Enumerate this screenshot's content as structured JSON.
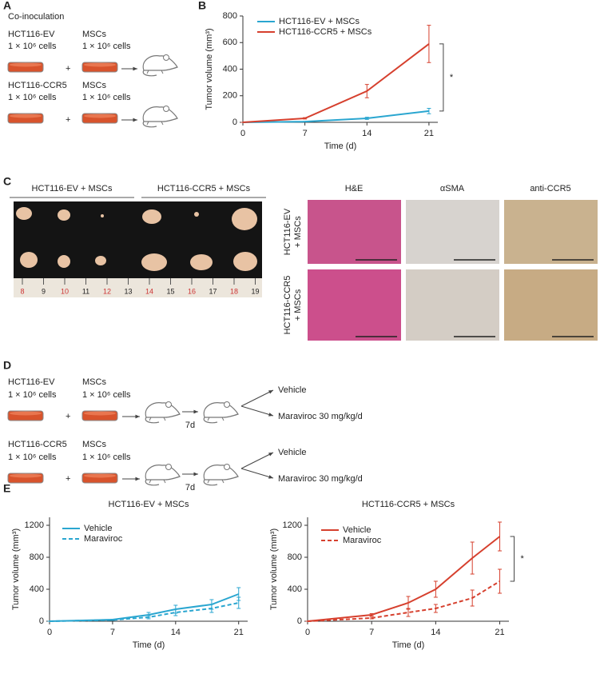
{
  "panel_labels": [
    "A",
    "B",
    "C",
    "D",
    "E"
  ],
  "panel_a": {
    "title": "Co-inoculation",
    "groups": [
      {
        "cells": "HCT116-EV",
        "cells_count": "1 × 10⁶ cells",
        "msc": "MSCs",
        "msc_count": "1 × 10⁶ cells",
        "plus": "+"
      },
      {
        "cells": "HCT116-CCR5",
        "cells_count": "1 × 10⁶ cells",
        "msc": "MSCs",
        "msc_count": "1 × 10⁶ cells",
        "plus": "+"
      }
    ]
  },
  "panel_c": {
    "photo_groups": [
      "HCT116-EV + MSCs",
      "HCT116-CCR5 + MSCs"
    ],
    "ruler": [
      "8",
      "9",
      "10",
      "11",
      "12",
      "13",
      "14",
      "15",
      "16",
      "17",
      "18",
      "19"
    ],
    "stain_columns": [
      "H&E",
      "αSMA",
      "anti-CCR5"
    ],
    "stain_rows": [
      [
        "HCT116-EV",
        "+ MSCs"
      ],
      [
        "HCT116-CCR5",
        "+ MSCs"
      ]
    ]
  },
  "panel_d": {
    "groups": [
      {
        "cells": "HCT116-EV",
        "cells_count": "1 × 10⁶ cells",
        "msc": "MSCs",
        "msc_count": "1 × 10⁶ cells",
        "plus": "+",
        "day": "7d",
        "treatments": [
          "Vehicle",
          "Maraviroc 30 mg/kg/d"
        ]
      },
      {
        "cells": "HCT116-CCR5",
        "cells_count": "1 × 10⁶ cells",
        "msc": "MSCs",
        "msc_count": "1 × 10⁶ cells",
        "plus": "+",
        "day": "7d",
        "treatments": [
          "Vehicle",
          "Maraviroc 30 mg/kg/d"
        ]
      }
    ]
  },
  "chart_data": [
    {
      "type": "line",
      "x": [
        0,
        7,
        14,
        21
      ],
      "xlim": [
        0,
        22
      ],
      "xticks": [
        0,
        7,
        14,
        21
      ],
      "ylim": [
        0,
        800
      ],
      "yticks": [
        0,
        200,
        400,
        600,
        800
      ],
      "xlabel": "Time (d)",
      "ylabel": "Tumor volume (mm³)",
      "annotation": "*",
      "series": [
        {
          "name": "HCT116-EV + MSCs",
          "color": "#2aa6d0",
          "linestyle": "solid",
          "values": [
            0,
            5,
            30,
            85
          ],
          "errors": [
            0,
            2,
            8,
            20
          ]
        },
        {
          "name": "HCT116-CCR5 + MSCs",
          "color": "#d6402e",
          "linestyle": "solid",
          "values": [
            0,
            30,
            235,
            590
          ],
          "errors": [
            0,
            5,
            50,
            140
          ]
        }
      ]
    },
    {
      "type": "line",
      "title": "HCT116-EV + MSCs",
      "x": [
        0,
        7,
        11,
        14,
        18,
        21
      ],
      "xlim": [
        0,
        22
      ],
      "xticks": [
        0,
        7,
        14,
        21
      ],
      "ylim": [
        0,
        1300
      ],
      "yticks": [
        0,
        400,
        800,
        1200
      ],
      "xlabel": "Time (d)",
      "ylabel": "Tumor volume (mm³)",
      "series": [
        {
          "name": "Vehicle",
          "color": "#2aa6d0",
          "linestyle": "solid",
          "values": [
            0,
            20,
            80,
            150,
            210,
            340
          ],
          "errors": [
            0,
            5,
            30,
            50,
            60,
            80
          ]
        },
        {
          "name": "Maraviroc",
          "color": "#2aa6d0",
          "linestyle": "dashed",
          "values": [
            0,
            15,
            50,
            110,
            160,
            230
          ],
          "errors": [
            0,
            5,
            20,
            40,
            50,
            70
          ]
        }
      ]
    },
    {
      "type": "line",
      "title": "HCT116-CCR5 + MSCs",
      "x": [
        0,
        7,
        11,
        14,
        18,
        21
      ],
      "xlim": [
        0,
        22
      ],
      "xticks": [
        0,
        7,
        14,
        21
      ],
      "ylim": [
        0,
        1300
      ],
      "yticks": [
        0,
        400,
        800,
        1200
      ],
      "xlabel": "Time (d)",
      "ylabel": "Tumor volume (mm³)",
      "annotation": "*",
      "series": [
        {
          "name": "Vehicle",
          "color": "#d6402e",
          "linestyle": "solid",
          "values": [
            0,
            80,
            230,
            400,
            790,
            1060
          ],
          "errors": [
            0,
            15,
            80,
            100,
            200,
            180
          ]
        },
        {
          "name": "Maraviroc",
          "color": "#d6402e",
          "linestyle": "dashed",
          "values": [
            0,
            40,
            110,
            160,
            290,
            500
          ],
          "errors": [
            0,
            10,
            50,
            50,
            100,
            150
          ]
        }
      ]
    }
  ]
}
